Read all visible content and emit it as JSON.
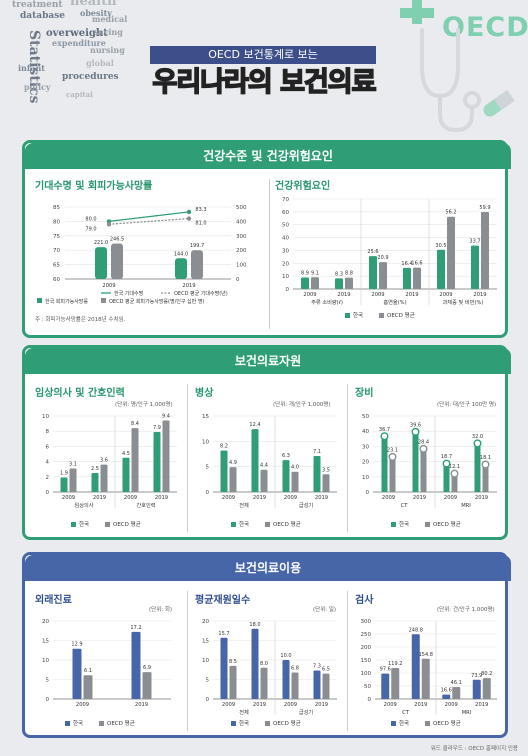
{
  "header": {
    "subtitle": "OECD 보건통계로 보는",
    "title": "우리나라의 보건의료",
    "logo": "OECD",
    "wordcloud": [
      "health",
      "treatment",
      "obesity",
      "database",
      "medical",
      "overweight",
      "saving",
      "expenditure",
      "nursing",
      "infant",
      "Statistics",
      "procedures",
      "policy",
      "global",
      "capital"
    ]
  },
  "colors": {
    "korea_green": "#2f9e76",
    "oecd_gray": "#8a8d92",
    "korea_blue": "#4666a8",
    "light_green": "#bfe6d5",
    "light_blue": "#c9d4ec"
  },
  "section1": {
    "title": "건강수준 및 건강위험요인",
    "panel_a_title": "기대수명 및 회피가능사망률",
    "panel_a_note": "주 : 회피가능사망률은 2018년 수치임.",
    "panel_b_title": "건강위험요인"
  },
  "section2": {
    "title": "보건의료자원",
    "panel_a_title": "임상의사 및 간호인력",
    "panel_a_unit": "(단위: 명/인구 1,000명)",
    "panel_b_title": "병상",
    "panel_b_unit": "(단위: 개/인구 1,000명)",
    "panel_c_title": "장비",
    "panel_c_unit": "(단위: 대/인구 100만 명)"
  },
  "section3": {
    "title": "보건의료이용",
    "panel_a_title": "외래진료",
    "panel_a_unit": "(단위: 회)",
    "panel_b_title": "평균재원일수",
    "panel_b_unit": "(단위: 일)",
    "panel_c_title": "검사",
    "panel_c_unit": "(단위: 건/인구 1,000명)"
  },
  "footer": {
    "credit": "워드 클라우드 : OECD 홈페이지 인용"
  },
  "chart_data": [
    {
      "id": "life-expectancy",
      "type": "bar",
      "title": "기대수명 및 회피가능사망률",
      "categories": [
        "2009",
        "2019"
      ],
      "series": [
        {
          "name": "한국 회피가능사망률",
          "values": [
            221.0,
            144.0
          ]
        },
        {
          "name": "OECD 평균 회피가능사망률(명/인구 십만 명)",
          "values": [
            246.5,
            199.7
          ]
        },
        {
          "name": "한국 기대수명",
          "values": [
            80.0,
            83.3
          ]
        },
        {
          "name": "OECD 평균 기대수명(년)",
          "values": [
            79.0,
            81.0
          ]
        }
      ],
      "ylim": [
        60,
        85
      ],
      "y2lim": [
        0,
        500
      ],
      "yticks": [
        60,
        65,
        70,
        75,
        80,
        85
      ],
      "y2ticks": [
        0,
        100,
        200,
        300,
        400,
        500
      ]
    },
    {
      "id": "risk-factors",
      "type": "bar",
      "title": "건강위험요인",
      "groups": [
        "주류 소비량(ℓ)",
        "흡연율(%)",
        "과체중 및 비만(%)"
      ],
      "categories": [
        "2009",
        "2019",
        "2009",
        "2019",
        "2009",
        "2019"
      ],
      "series": [
        {
          "name": "한국",
          "values": [
            8.9,
            8.3,
            25.6,
            16.4,
            30.5,
            33.7
          ]
        },
        {
          "name": "OECD 평균",
          "values": [
            9.1,
            8.8,
            20.9,
            16.6,
            56.2,
            59.9
          ]
        }
      ],
      "ylim": [
        0,
        70
      ],
      "yticks": [
        0,
        10,
        20,
        30,
        40,
        50,
        60,
        70
      ]
    },
    {
      "id": "doctors-nurses",
      "type": "bar",
      "title": "임상의사 및 간호인력",
      "groups": [
        "임상의사",
        "간호인력"
      ],
      "categories": [
        "2009",
        "2019",
        "2009",
        "2019"
      ],
      "series": [
        {
          "name": "한국",
          "values": [
            1.9,
            2.5,
            4.5,
            7.9
          ]
        },
        {
          "name": "OECD 평균",
          "values": [
            3.1,
            3.6,
            8.4,
            9.4
          ]
        }
      ],
      "ylim": [
        0,
        10
      ],
      "yticks": [
        0,
        2,
        4,
        6,
        8,
        10
      ]
    },
    {
      "id": "beds",
      "type": "bar",
      "title": "병상",
      "groups": [
        "전체",
        "급성기"
      ],
      "categories": [
        "2009",
        "2019",
        "2009",
        "2019"
      ],
      "series": [
        {
          "name": "한국",
          "values": [
            8.2,
            12.4,
            6.3,
            7.1
          ]
        },
        {
          "name": "OECD 평균",
          "values": [
            4.9,
            4.4,
            4.0,
            3.5
          ]
        }
      ],
      "ylim": [
        0,
        15
      ],
      "yticks": [
        0,
        5,
        10,
        15
      ]
    },
    {
      "id": "equipment",
      "type": "bar",
      "title": "장비",
      "groups": [
        "CT",
        "MRI"
      ],
      "categories": [
        "2009",
        "2019",
        "2009",
        "2019"
      ],
      "series": [
        {
          "name": "한국",
          "values": [
            36.7,
            39.6,
            18.7,
            32.0
          ]
        },
        {
          "name": "OECD 평균",
          "values": [
            23.1,
            28.4,
            12.1,
            18.1
          ]
        }
      ],
      "ylim": [
        0,
        50
      ],
      "yticks": [
        0,
        10,
        20,
        30,
        40,
        50
      ]
    },
    {
      "id": "outpatient",
      "type": "bar",
      "title": "외래진료",
      "categories": [
        "2009",
        "2019"
      ],
      "series": [
        {
          "name": "한국",
          "values": [
            12.9,
            17.2
          ]
        },
        {
          "name": "OECD 평균",
          "values": [
            6.1,
            6.9
          ]
        }
      ],
      "ylim": [
        0,
        20
      ],
      "yticks": [
        0,
        5,
        10,
        15,
        20
      ]
    },
    {
      "id": "length-of-stay",
      "type": "bar",
      "title": "평균재원일수",
      "groups": [
        "전체",
        "급성기"
      ],
      "categories": [
        "2009",
        "2019",
        "2009",
        "2019"
      ],
      "series": [
        {
          "name": "한국",
          "values": [
            15.7,
            18.0,
            10.0,
            7.3
          ]
        },
        {
          "name": "OECD 평균",
          "values": [
            8.5,
            8.0,
            6.8,
            6.5
          ]
        }
      ],
      "ylim": [
        0,
        20
      ],
      "yticks": [
        0,
        5,
        10,
        15,
        20
      ]
    },
    {
      "id": "exams",
      "type": "bar",
      "title": "검사",
      "groups": [
        "CT",
        "MRI"
      ],
      "categories": [
        "2009",
        "2019",
        "2009",
        "2019"
      ],
      "series": [
        {
          "name": "한국",
          "values": [
            97.6,
            248.8,
            16.6,
            73.9
          ]
        },
        {
          "name": "OECD 평균",
          "values": [
            119.2,
            154.8,
            46.1,
            80.2
          ]
        }
      ],
      "ylim": [
        0,
        300
      ],
      "yticks": [
        0,
        50,
        100,
        150,
        200,
        250,
        300
      ]
    }
  ]
}
